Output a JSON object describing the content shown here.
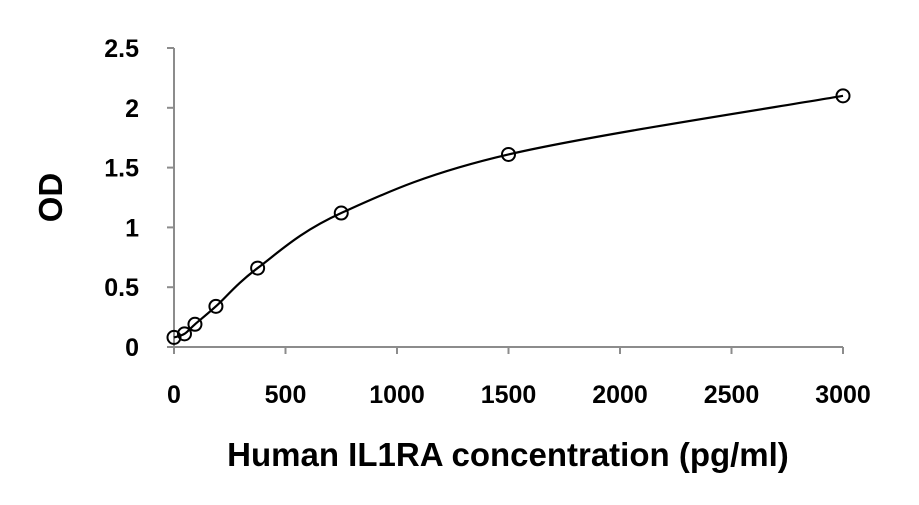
{
  "chart_data": {
    "type": "scatter",
    "title": "",
    "xlabel": "Human IL1RA concentration (pg/ml)",
    "ylabel": "OD",
    "xlim": [
      0,
      3000
    ],
    "ylim": [
      0,
      2.5
    ],
    "x_ticks": [
      0,
      500,
      1000,
      1500,
      2000,
      2500,
      3000
    ],
    "y_ticks": [
      0,
      0.5,
      1,
      1.5,
      2,
      2.5
    ],
    "x_tick_labels": [
      "0",
      "500",
      "1000",
      "1500",
      "2000",
      "2500",
      "3000"
    ],
    "y_tick_labels": [
      "0",
      "0.5",
      "1",
      "1.5",
      "2",
      "2.5"
    ],
    "grid": false,
    "legend": "none",
    "series": [
      {
        "marker": "open-circle",
        "fit_line": "smooth",
        "color": "#000000",
        "x": [
          0,
          47,
          94,
          188,
          375,
          750,
          1500,
          3000
        ],
        "y": [
          0.08,
          0.11,
          0.19,
          0.34,
          0.66,
          1.12,
          1.61,
          2.1
        ]
      }
    ]
  }
}
